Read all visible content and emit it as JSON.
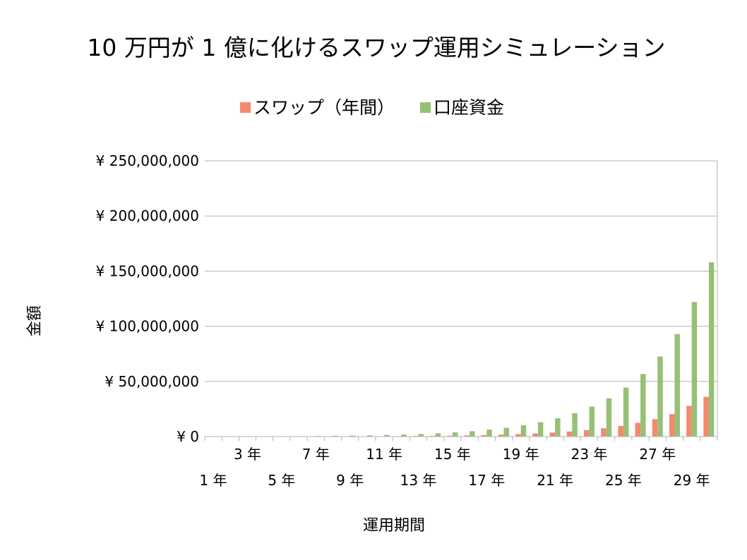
{
  "chart_data": {
    "type": "bar",
    "title": "10 万円が 1 億に化けるスワップ運用シミュレーション",
    "xlabel": "運用期間",
    "ylabel": "金額",
    "ylim": [
      0,
      250000000
    ],
    "yticks": [
      0,
      50000000,
      100000000,
      150000000,
      200000000,
      250000000
    ],
    "ytick_labels": [
      "¥ 0",
      "¥ 50,000,000",
      "¥ 100,000,000",
      "¥ 150,000,000",
      "¥ 200,000,000",
      "¥ 250,000,000"
    ],
    "categories": [
      "1 年",
      "2 年",
      "3 年",
      "4 年",
      "5 年",
      "6 年",
      "7 年",
      "8 年",
      "9 年",
      "10 年",
      "11 年",
      "12 年",
      "13 年",
      "14 年",
      "15 年",
      "16 年",
      "17 年",
      "18 年",
      "19 年",
      "20 年",
      "21 年",
      "22 年",
      "23 年",
      "24 年",
      "25 年",
      "26 年",
      "27 年",
      "28 年",
      "29 年",
      "30 年"
    ],
    "visible_tick_labels": [
      "1 年",
      "3 年",
      "5 年",
      "7 年",
      "9 年",
      "11 年",
      "13 年",
      "15 年",
      "17 年",
      "19 年",
      "21 年",
      "23 年",
      "25 年",
      "27 年",
      "29 年"
    ],
    "legend_position": "top-center",
    "grid": true,
    "series": [
      {
        "name": "スワップ（年間）",
        "color": "#f4896c",
        "values": [
          27000,
          34000,
          43000,
          56000,
          71000,
          91000,
          116000,
          148000,
          190000,
          243000,
          310000,
          397000,
          507000,
          648000,
          829000,
          1060000,
          1350000,
          1730000,
          2210000,
          2830000,
          3620000,
          4630000,
          5920000,
          7570000,
          9690000,
          12400000,
          15800000,
          20300000,
          27800000,
          36000000
        ]
      },
      {
        "name": "口座資金",
        "color": "#97c077",
        "values": [
          127000,
          161000,
          204000,
          260000,
          331000,
          422000,
          538000,
          686000,
          876000,
          1120000,
          1430000,
          1830000,
          2330000,
          2980000,
          3810000,
          4870000,
          6220000,
          7950000,
          10200000,
          13000000,
          16600000,
          21200000,
          27200000,
          34700000,
          44400000,
          56800000,
          72600000,
          92900000,
          122000000,
          158000000
        ]
      }
    ]
  }
}
